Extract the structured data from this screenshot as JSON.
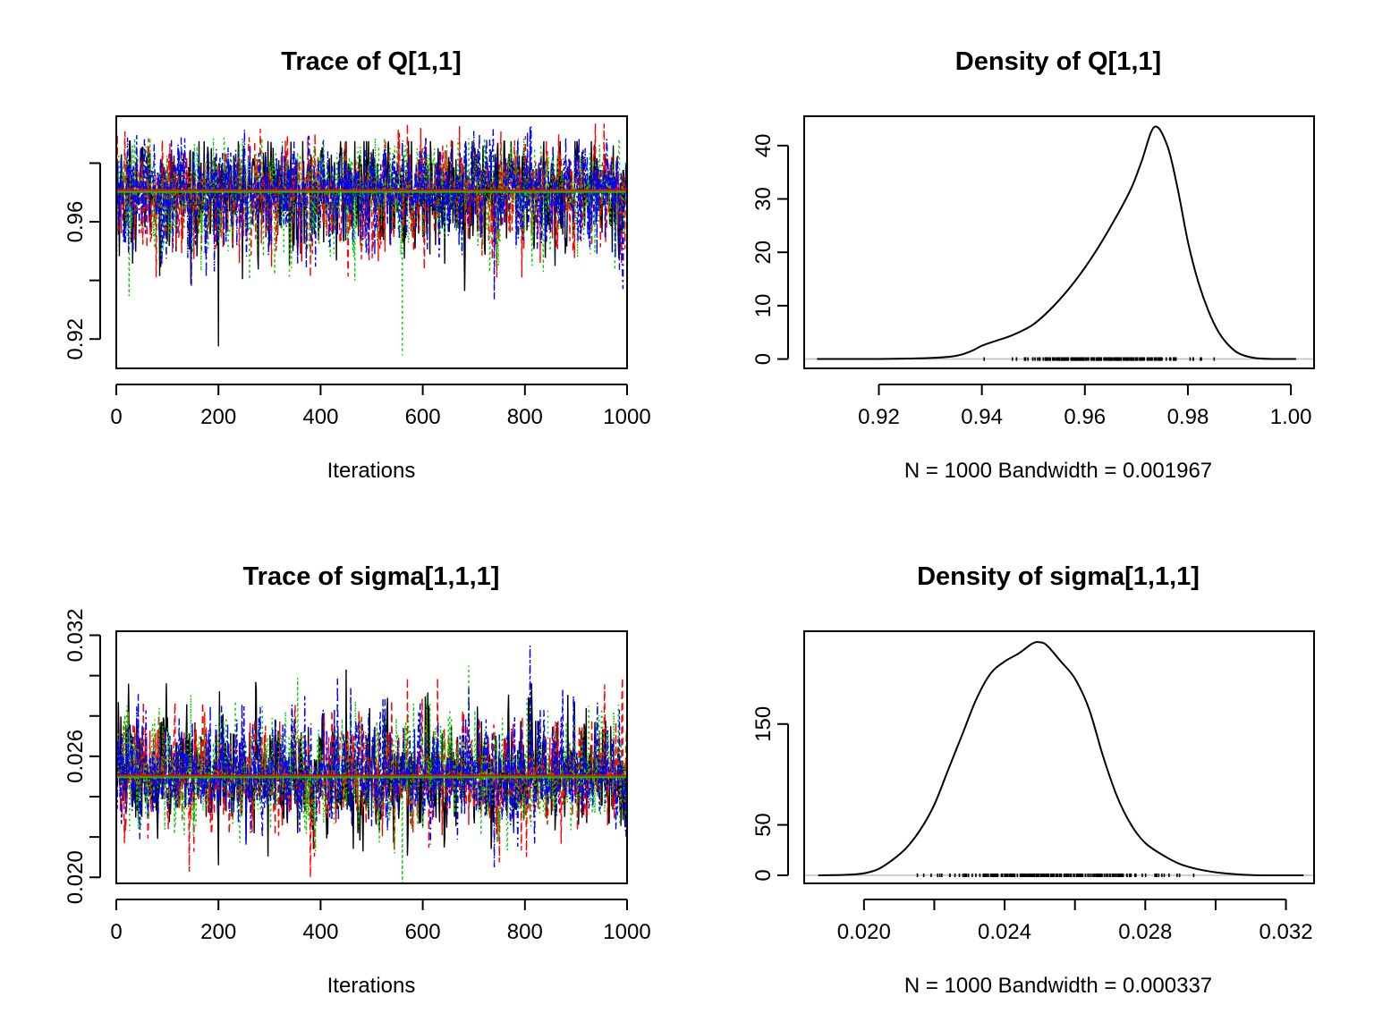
{
  "colors": {
    "background": "#ffffff",
    "axis": "#000000",
    "chain_colors": [
      "#000000",
      "#ff0000",
      "#00cd00",
      "#0000ff"
    ],
    "density_baseline": "#bebebe"
  },
  "chart_data": [
    {
      "id": "trace_q",
      "type": "line",
      "title": "Trace of Q[1,1]",
      "xlabel": "Iterations",
      "ylabel": "",
      "xlim": [
        0,
        1000
      ],
      "ylim": [
        0.91,
        0.996
      ],
      "x_ticks": [
        0,
        200,
        400,
        600,
        800,
        1000
      ],
      "x_tick_labels": [
        "0",
        "200",
        "400",
        "600",
        "800",
        "1000"
      ],
      "y_ticks": [
        0.92,
        0.94,
        0.96,
        0.98
      ],
      "y_tick_labels": [
        "0.92",
        "",
        "0.96",
        ""
      ],
      "grid": false,
      "series": [
        {
          "chain": 1,
          "color": "#000000",
          "line_style": "solid",
          "mean": 0.9705,
          "sd": 0.0085,
          "min": 0.9175,
          "max": 0.9875
        },
        {
          "chain": 2,
          "color": "#ff0000",
          "line_style": "dashed",
          "mean": 0.9705,
          "sd": 0.0085,
          "min": 0.941,
          "max": 0.9935
        },
        {
          "chain": 3,
          "color": "#00cd00",
          "line_style": "dotted",
          "mean": 0.9705,
          "sd": 0.0085,
          "min": 0.9145,
          "max": 0.9885
        },
        {
          "chain": 4,
          "color": "#0000ff",
          "line_style": "dotdash",
          "mean": 0.9705,
          "sd": 0.0085,
          "min": 0.9335,
          "max": 0.9925
        }
      ],
      "running_mean": 0.9705
    },
    {
      "id": "density_q",
      "type": "line",
      "title": "Density of Q[1,1]",
      "xlabel": "N = 1000   Bandwidth = 0.001967",
      "ylabel": "",
      "xlim": [
        0.9055,
        1.0045
      ],
      "ylim": [
        -1.75,
        45.5
      ],
      "x_ticks": [
        0.92,
        0.94,
        0.96,
        0.98,
        1.0
      ],
      "x_tick_labels": [
        "0.92",
        "0.94",
        "0.96",
        "0.98",
        "1.00"
      ],
      "y_ticks": [
        0,
        10,
        20,
        30,
        40
      ],
      "y_tick_labels": [
        "0",
        "10",
        "20",
        "30",
        "40"
      ],
      "grid": false,
      "x": [
        0.908,
        0.92,
        0.93,
        0.935,
        0.938,
        0.94,
        0.943,
        0.946,
        0.95,
        0.954,
        0.958,
        0.962,
        0.966,
        0.969,
        0.971,
        0.9735,
        0.976,
        0.978,
        0.98,
        0.982,
        0.984,
        0.986,
        0.988,
        0.99,
        0.993,
        0.997,
        1.001
      ],
      "y": [
        0,
        0,
        0.2,
        0.6,
        1.5,
        2.5,
        3.5,
        4.5,
        6.5,
        10,
        14.5,
        20,
        26.5,
        32,
        37,
        43.5,
        40,
        32,
        22,
        14.5,
        9,
        5,
        2.5,
        1,
        0.2,
        0,
        0
      ],
      "rug": {
        "from": 0.938,
        "to": 0.99
      }
    },
    {
      "id": "trace_sigma",
      "type": "line",
      "title": "Trace of sigma[1,1,1]",
      "xlabel": "Iterations",
      "ylabel": "",
      "xlim": [
        0,
        1000
      ],
      "ylim": [
        0.0197,
        0.0322
      ],
      "x_ticks": [
        0,
        200,
        400,
        600,
        800,
        1000
      ],
      "x_tick_labels": [
        "0",
        "200",
        "400",
        "600",
        "800",
        "1000"
      ],
      "y_ticks": [
        0.02,
        0.022,
        0.024,
        0.026,
        0.028,
        0.03,
        0.032
      ],
      "y_tick_labels": [
        "0.020",
        "",
        "",
        "0.026",
        "",
        "",
        "0.032"
      ],
      "grid": false,
      "series": [
        {
          "chain": 1,
          "color": "#000000",
          "line_style": "solid",
          "mean": 0.025,
          "sd": 0.0013,
          "min": 0.0206,
          "max": 0.0303
        },
        {
          "chain": 2,
          "color": "#ff0000",
          "line_style": "dashed",
          "mean": 0.025,
          "sd": 0.0013,
          "min": 0.02,
          "max": 0.0299
        },
        {
          "chain": 3,
          "color": "#00cd00",
          "line_style": "dotted",
          "mean": 0.025,
          "sd": 0.0013,
          "min": 0.0197,
          "max": 0.0305
        },
        {
          "chain": 4,
          "color": "#0000ff",
          "line_style": "dotdash",
          "mean": 0.025,
          "sd": 0.0013,
          "min": 0.0205,
          "max": 0.0315
        }
      ],
      "running_mean": 0.025
    },
    {
      "id": "density_sigma",
      "type": "line",
      "title": "Density of sigma[1,1,1]",
      "xlabel": "N = 1000   Bandwidth = 0.000337",
      "ylabel": "",
      "xlim": [
        0.0183,
        0.0328
      ],
      "ylim": [
        -8,
        242
      ],
      "x_ticks": [
        0.02,
        0.022,
        0.024,
        0.026,
        0.028,
        0.03,
        0.032
      ],
      "x_tick_labels": [
        "0.020",
        "",
        "0.024",
        "",
        "0.028",
        "",
        "0.032"
      ],
      "y_ticks": [
        0,
        50,
        150
      ],
      "y_tick_labels": [
        "0",
        "50",
        "150"
      ],
      "grid": false,
      "x": [
        0.0187,
        0.0195,
        0.02,
        0.0204,
        0.0208,
        0.0212,
        0.0216,
        0.022,
        0.0224,
        0.0228,
        0.0232,
        0.0236,
        0.024,
        0.0244,
        0.0248,
        0.025,
        0.0252,
        0.0256,
        0.026,
        0.0264,
        0.0268,
        0.0272,
        0.0276,
        0.028,
        0.0285,
        0.029,
        0.0295,
        0.03,
        0.0306,
        0.0313,
        0.0325
      ],
      "y": [
        0,
        0.5,
        2,
        6,
        15,
        27,
        45,
        70,
        105,
        140,
        175,
        200,
        212,
        220,
        230,
        231,
        228,
        212,
        195,
        165,
        118,
        78,
        50,
        32,
        20,
        11,
        6,
        3,
        1,
        0,
        0
      ],
      "rug": {
        "from": 0.0206,
        "to": 0.03
      }
    }
  ]
}
